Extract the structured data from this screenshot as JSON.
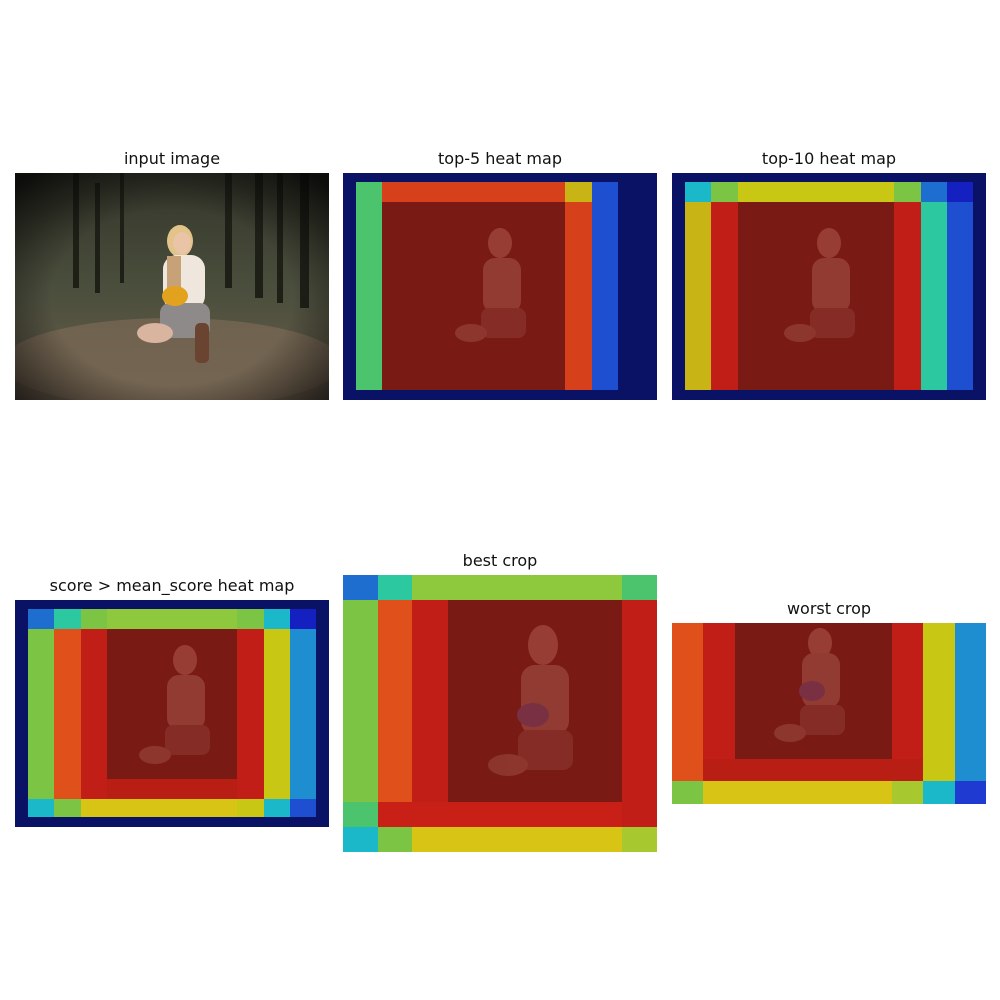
{
  "panels": [
    {
      "id": "input",
      "title": "input image",
      "colors": {
        "sky": "#2b2f22",
        "ground": "#6a5a4a"
      }
    },
    {
      "id": "top5",
      "title": "top-5 heat map",
      "colors": {
        "base": "#0a1266",
        "core": "#7a1a14"
      }
    },
    {
      "id": "top10",
      "title": "top-10 heat map",
      "colors": {
        "base": "#0a1266",
        "core": "#7a1a14"
      }
    },
    {
      "id": "mean",
      "title": "score > mean_score heat map",
      "colors": {
        "base": "#0a1266",
        "core": "#7a1a14"
      }
    },
    {
      "id": "best",
      "title": "best crop",
      "colors": {
        "core": "#7a1a14"
      }
    },
    {
      "id": "worst",
      "title": "worst crop",
      "colors": {
        "core": "#7a1a14"
      }
    }
  ]
}
